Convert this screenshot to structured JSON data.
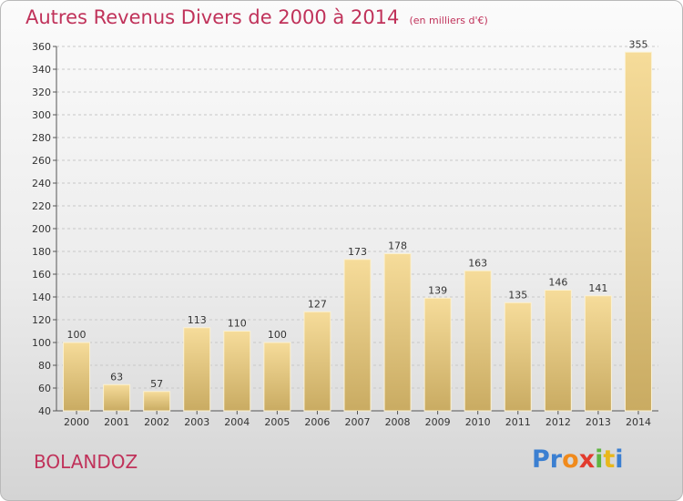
{
  "chart_data": {
    "type": "bar",
    "title": "Autres Revenus Divers de 2000 à 2014",
    "subtitle": "(en milliers d'€)",
    "categories": [
      "2000",
      "2001",
      "2002",
      "2003",
      "2004",
      "2005",
      "2006",
      "2007",
      "2008",
      "2009",
      "2010",
      "2011",
      "2012",
      "2013",
      "2014"
    ],
    "values": [
      100,
      63,
      57,
      113,
      110,
      100,
      127,
      173,
      178,
      139,
      163,
      135,
      146,
      141,
      355
    ],
    "ylim": [
      40,
      360
    ],
    "yticks": [
      40,
      60,
      80,
      100,
      120,
      140,
      160,
      180,
      200,
      220,
      240,
      260,
      280,
      300,
      320,
      340,
      360
    ],
    "grid": "horizontal dashed",
    "bar_color": "#e7c97f"
  },
  "place_name": "BOLANDOZ",
  "logo": {
    "letters": [
      "P",
      "r",
      "o",
      "x",
      "i",
      "t",
      "i"
    ],
    "colors": [
      "#3b7fd1",
      "#3b7fd1",
      "#f08a1c",
      "#e23b2e",
      "#5fb540",
      "#e8b71b",
      "#3b7fd1"
    ]
  },
  "colors": {
    "title": "#c0325a",
    "axis": "#555555",
    "grid": "#c8c8c8"
  }
}
